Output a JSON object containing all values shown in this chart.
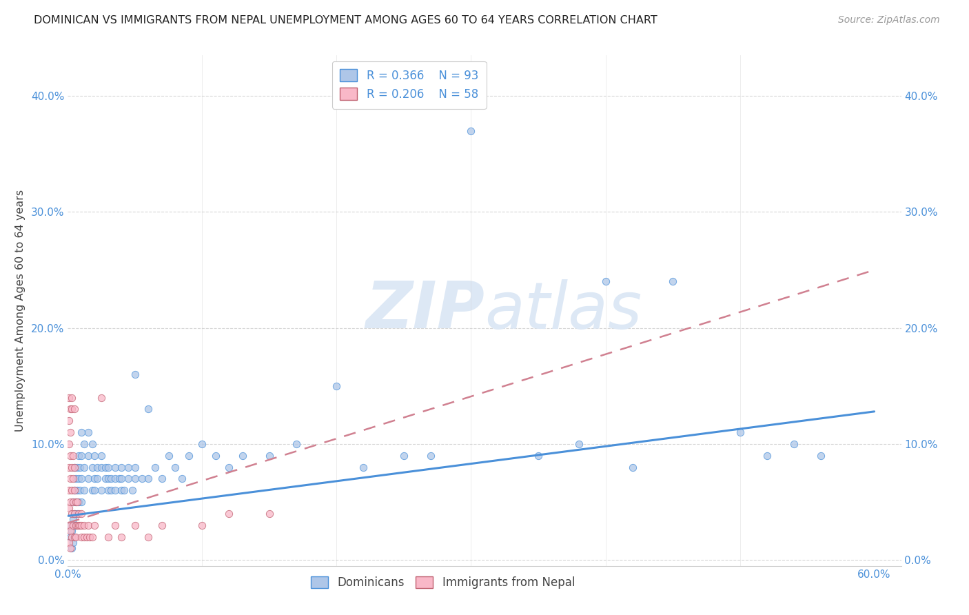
{
  "title": "DOMINICAN VS IMMIGRANTS FROM NEPAL UNEMPLOYMENT AMONG AGES 60 TO 64 YEARS CORRELATION CHART",
  "source": "Source: ZipAtlas.com",
  "ylabel": "Unemployment Among Ages 60 to 64 years",
  "ytick_labels": [
    "0.0%",
    "10.0%",
    "20.0%",
    "30.0%",
    "40.0%"
  ],
  "ytick_values": [
    0.0,
    0.1,
    0.2,
    0.3,
    0.4
  ],
  "xtick_labels_show": [
    "0.0%",
    "60.0%"
  ],
  "xtick_vals_show": [
    0.0,
    0.6
  ],
  "xlim": [
    0.0,
    0.62
  ],
  "ylim": [
    -0.005,
    0.435
  ],
  "dominican_R": 0.366,
  "dominican_N": 93,
  "nepal_R": 0.206,
  "nepal_N": 58,
  "dominican_color": "#aec6e8",
  "nepal_color": "#f9b8c8",
  "trend_dominican_color": "#4a90d9",
  "trend_nepal_color": "#d08090",
  "watermark_zip": "ZIP",
  "watermark_atlas": "atlas",
  "watermark_color": "#dde8f5",
  "background_color": "#ffffff",
  "grid_color": "#cccccc",
  "title_color": "#222222",
  "axis_label_color": "#4a90d9",
  "dominican_scatter": [
    [
      0.002,
      0.02
    ],
    [
      0.002,
      0.03
    ],
    [
      0.003,
      0.01
    ],
    [
      0.003,
      0.025
    ],
    [
      0.004,
      0.015
    ],
    [
      0.004,
      0.035
    ],
    [
      0.004,
      0.05
    ],
    [
      0.005,
      0.02
    ],
    [
      0.005,
      0.04
    ],
    [
      0.005,
      0.06
    ],
    [
      0.005,
      0.08
    ],
    [
      0.006,
      0.03
    ],
    [
      0.006,
      0.05
    ],
    [
      0.006,
      0.07
    ],
    [
      0.007,
      0.04
    ],
    [
      0.007,
      0.06
    ],
    [
      0.007,
      0.08
    ],
    [
      0.008,
      0.05
    ],
    [
      0.008,
      0.07
    ],
    [
      0.008,
      0.09
    ],
    [
      0.009,
      0.06
    ],
    [
      0.009,
      0.08
    ],
    [
      0.01,
      0.05
    ],
    [
      0.01,
      0.07
    ],
    [
      0.01,
      0.09
    ],
    [
      0.01,
      0.11
    ],
    [
      0.012,
      0.06
    ],
    [
      0.012,
      0.08
    ],
    [
      0.012,
      0.1
    ],
    [
      0.015,
      0.07
    ],
    [
      0.015,
      0.09
    ],
    [
      0.015,
      0.11
    ],
    [
      0.018,
      0.06
    ],
    [
      0.018,
      0.08
    ],
    [
      0.018,
      0.1
    ],
    [
      0.02,
      0.07
    ],
    [
      0.02,
      0.09
    ],
    [
      0.02,
      0.06
    ],
    [
      0.022,
      0.08
    ],
    [
      0.022,
      0.07
    ],
    [
      0.025,
      0.08
    ],
    [
      0.025,
      0.06
    ],
    [
      0.025,
      0.09
    ],
    [
      0.028,
      0.07
    ],
    [
      0.028,
      0.08
    ],
    [
      0.03,
      0.06
    ],
    [
      0.03,
      0.07
    ],
    [
      0.03,
      0.08
    ],
    [
      0.032,
      0.07
    ],
    [
      0.032,
      0.06
    ],
    [
      0.035,
      0.07
    ],
    [
      0.035,
      0.08
    ],
    [
      0.035,
      0.06
    ],
    [
      0.038,
      0.07
    ],
    [
      0.04,
      0.06
    ],
    [
      0.04,
      0.08
    ],
    [
      0.04,
      0.07
    ],
    [
      0.042,
      0.06
    ],
    [
      0.045,
      0.08
    ],
    [
      0.045,
      0.07
    ],
    [
      0.048,
      0.06
    ],
    [
      0.05,
      0.07
    ],
    [
      0.05,
      0.08
    ],
    [
      0.05,
      0.16
    ],
    [
      0.055,
      0.07
    ],
    [
      0.06,
      0.13
    ],
    [
      0.06,
      0.07
    ],
    [
      0.065,
      0.08
    ],
    [
      0.07,
      0.07
    ],
    [
      0.075,
      0.09
    ],
    [
      0.08,
      0.08
    ],
    [
      0.085,
      0.07
    ],
    [
      0.09,
      0.09
    ],
    [
      0.1,
      0.1
    ],
    [
      0.11,
      0.09
    ],
    [
      0.12,
      0.08
    ],
    [
      0.13,
      0.09
    ],
    [
      0.15,
      0.09
    ],
    [
      0.17,
      0.1
    ],
    [
      0.2,
      0.15
    ],
    [
      0.22,
      0.08
    ],
    [
      0.25,
      0.09
    ],
    [
      0.27,
      0.09
    ],
    [
      0.3,
      0.37
    ],
    [
      0.35,
      0.09
    ],
    [
      0.38,
      0.1
    ],
    [
      0.4,
      0.24
    ],
    [
      0.42,
      0.08
    ],
    [
      0.45,
      0.24
    ],
    [
      0.5,
      0.11
    ],
    [
      0.52,
      0.09
    ],
    [
      0.54,
      0.1
    ],
    [
      0.56,
      0.09
    ]
  ],
  "nepal_scatter": [
    [
      0.001,
      0.015
    ],
    [
      0.001,
      0.03
    ],
    [
      0.001,
      0.045
    ],
    [
      0.001,
      0.06
    ],
    [
      0.001,
      0.08
    ],
    [
      0.001,
      0.1
    ],
    [
      0.001,
      0.12
    ],
    [
      0.001,
      0.14
    ],
    [
      0.002,
      0.01
    ],
    [
      0.002,
      0.025
    ],
    [
      0.002,
      0.05
    ],
    [
      0.002,
      0.07
    ],
    [
      0.002,
      0.09
    ],
    [
      0.002,
      0.11
    ],
    [
      0.002,
      0.13
    ],
    [
      0.003,
      0.02
    ],
    [
      0.003,
      0.04
    ],
    [
      0.003,
      0.06
    ],
    [
      0.003,
      0.08
    ],
    [
      0.003,
      0.13
    ],
    [
      0.003,
      0.14
    ],
    [
      0.004,
      0.03
    ],
    [
      0.004,
      0.05
    ],
    [
      0.004,
      0.07
    ],
    [
      0.004,
      0.09
    ],
    [
      0.005,
      0.02
    ],
    [
      0.005,
      0.04
    ],
    [
      0.005,
      0.06
    ],
    [
      0.005,
      0.08
    ],
    [
      0.005,
      0.13
    ],
    [
      0.006,
      0.03
    ],
    [
      0.006,
      0.05
    ],
    [
      0.006,
      0.02
    ],
    [
      0.007,
      0.03
    ],
    [
      0.007,
      0.05
    ],
    [
      0.008,
      0.03
    ],
    [
      0.008,
      0.04
    ],
    [
      0.009,
      0.03
    ],
    [
      0.01,
      0.02
    ],
    [
      0.01,
      0.04
    ],
    [
      0.01,
      0.03
    ],
    [
      0.012,
      0.03
    ],
    [
      0.012,
      0.02
    ],
    [
      0.014,
      0.02
    ],
    [
      0.015,
      0.03
    ],
    [
      0.016,
      0.02
    ],
    [
      0.018,
      0.02
    ],
    [
      0.02,
      0.03
    ],
    [
      0.025,
      0.14
    ],
    [
      0.03,
      0.02
    ],
    [
      0.035,
      0.03
    ],
    [
      0.04,
      0.02
    ],
    [
      0.05,
      0.03
    ],
    [
      0.06,
      0.02
    ],
    [
      0.07,
      0.03
    ],
    [
      0.1,
      0.03
    ],
    [
      0.12,
      0.04
    ],
    [
      0.15,
      0.04
    ]
  ],
  "dom_trend": [
    0.0,
    0.6,
    0.038,
    0.128
  ],
  "nep_trend": [
    0.0,
    0.6,
    0.032,
    0.25
  ]
}
